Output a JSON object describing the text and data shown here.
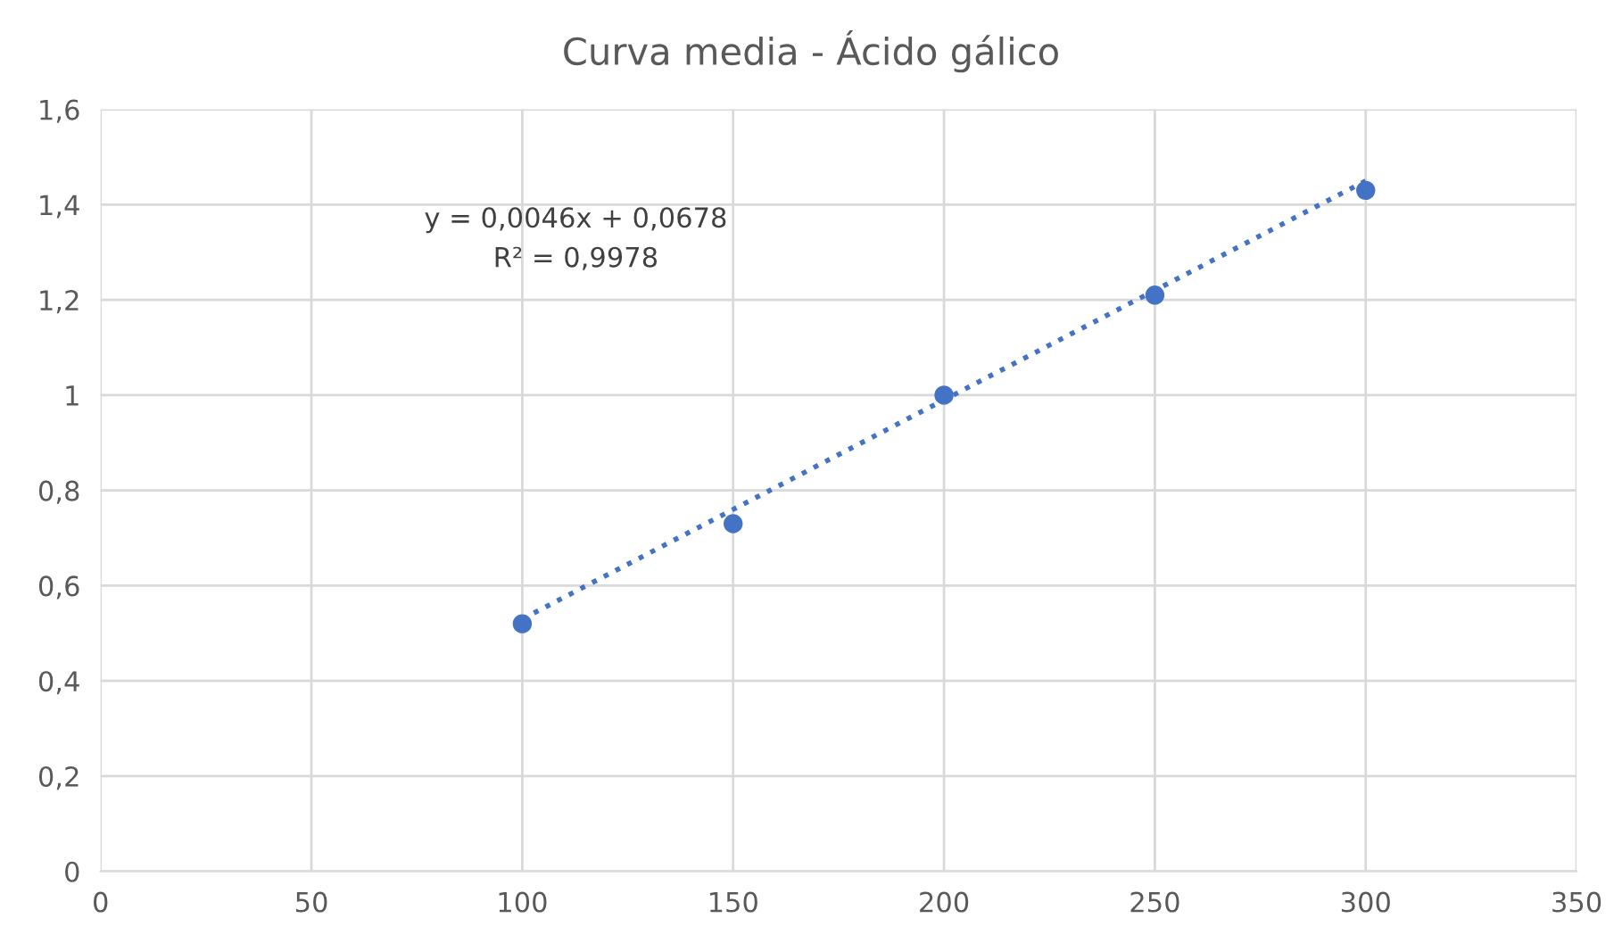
{
  "chart_data": {
    "type": "scatter",
    "title": "Curva media - Ácido gálico",
    "series": [
      {
        "color": "#4472c4",
        "x": [
          100,
          150,
          200,
          250,
          300
        ],
        "values": [
          0.52,
          0.73,
          1.0,
          1.21,
          1.43
        ],
        "marker": "circle"
      },
      {
        "type": "line",
        "color": "#4472c4",
        "x": [
          100,
          300
        ],
        "values": [
          0.53,
          1.45
        ],
        "line_style": "dotted",
        "marker": "none"
      }
    ],
    "annotations": [
      "y = 0,0046x + 0,0678",
      "R² = 0,9978"
    ],
    "xlim": [
      0,
      350
    ],
    "xticks": [
      0,
      50,
      100,
      150,
      200,
      250,
      300,
      350
    ],
    "ylim": [
      0,
      1.6
    ],
    "yticks": [
      0,
      {
        "value": 0.2,
        "label": "0,2"
      },
      {
        "value": 0.4,
        "label": "0,4"
      },
      {
        "value": 0.6,
        "label": "0,6"
      },
      {
        "value": 0.8,
        "label": "0,8"
      },
      1,
      {
        "value": 1.2,
        "label": "1,2"
      },
      {
        "value": 1.4,
        "label": "1,4"
      },
      {
        "value": 1.6,
        "label": "1,6"
      }
    ],
    "grid": true,
    "legend": false
  }
}
